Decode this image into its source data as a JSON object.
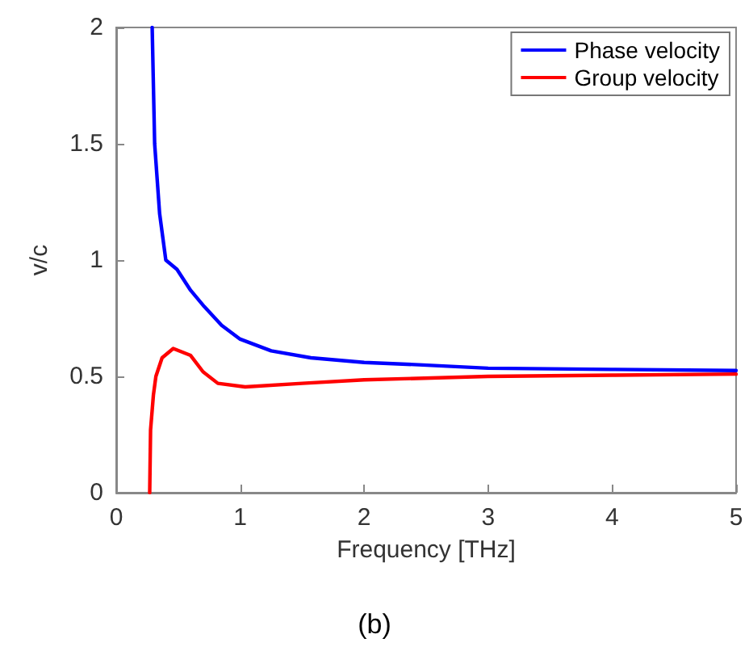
{
  "chart_data": {
    "type": "line",
    "xlabel": "Frequency [THz]",
    "ylabel": "v/c",
    "annotations": [
      "(b)"
    ],
    "xlim": [
      0,
      5
    ],
    "ylim": [
      0,
      2
    ],
    "xticks": [
      0,
      1,
      2,
      3,
      4,
      5
    ],
    "yticks": [
      0,
      0.5,
      1,
      1.5,
      2
    ],
    "grid": false,
    "legend": "top right",
    "marker": "none",
    "line_style": "solid",
    "series": [
      {
        "name": "Phase velocity",
        "color": "#0000ff",
        "x": [
          0.29,
          0.31,
          0.35,
          0.4,
          0.49,
          0.6,
          0.71,
          0.85,
          1.0,
          1.25,
          1.57,
          2.0,
          2.44,
          3.0,
          4.0,
          5.0
        ],
        "values": [
          2,
          1.5,
          1.2,
          1.0,
          0.96,
          0.87,
          0.8,
          0.72,
          0.66,
          0.61,
          0.58,
          0.56,
          0.55,
          0.535,
          0.53,
          0.525
        ]
      },
      {
        "name": "Group velocity",
        "color": "#ff0000",
        "x": [
          0.27,
          0.277,
          0.3,
          0.32,
          0.37,
          0.46,
          0.6,
          0.7,
          0.82,
          1.04,
          1.5,
          2.0,
          3.0,
          4.0,
          5.0
        ],
        "values": [
          0,
          0.27,
          0.42,
          0.5,
          0.58,
          0.62,
          0.59,
          0.52,
          0.47,
          0.455,
          0.47,
          0.485,
          0.5,
          0.505,
          0.51
        ]
      }
    ]
  }
}
